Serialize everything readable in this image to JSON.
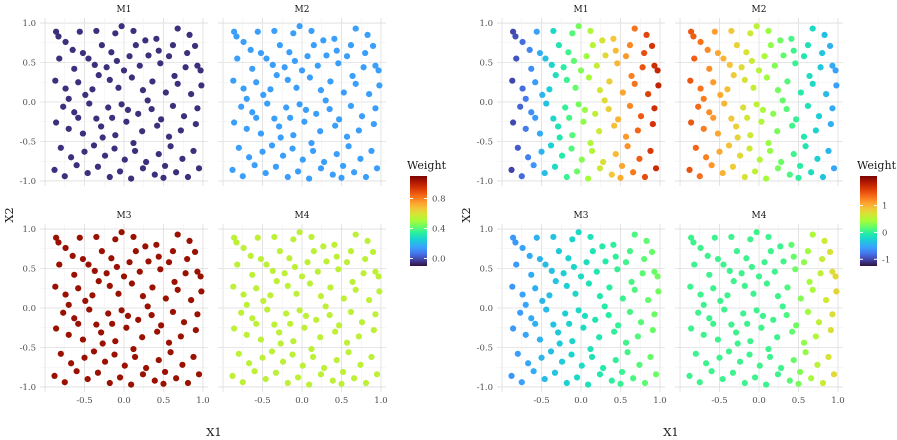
{
  "chart_data": [
    {
      "type": "scatter",
      "facet_layout": "2x2",
      "panels": [
        "M1",
        "M2",
        "M3",
        "M4"
      ],
      "xlabel": "X1",
      "ylabel": "X2",
      "xlim": [
        -1,
        1
      ],
      "ylim": [
        -1,
        1
      ],
      "x_ticks": [
        "-0.5",
        "0.0",
        "0.5",
        "1.0"
      ],
      "y_ticks": [
        "1.0",
        "0.5",
        "0.0",
        "-0.5",
        "-1.0"
      ],
      "legend": {
        "title": "Weight",
        "position": "right",
        "scale": "turbo",
        "range": [
          -0.1,
          1.1
        ],
        "ticks": [
          "0.8",
          "0.4",
          "0.0"
        ]
      },
      "point_weights": {
        "M1": -0.05,
        "M2": 0.15,
        "M3": 1.05,
        "M4": 0.55
      }
    },
    {
      "type": "scatter",
      "facet_layout": "2x2",
      "panels": [
        "M1",
        "M2",
        "M3",
        "M4"
      ],
      "xlabel": "X1",
      "ylabel": "X2",
      "xlim": [
        -1,
        1
      ],
      "ylim": [
        -1,
        1
      ],
      "x_ticks": [
        "-0.5",
        "0.0",
        "0.5",
        "1.0"
      ],
      "y_ticks": [
        "1.0",
        "0.5",
        "0.0",
        "-0.5",
        "-1.0"
      ],
      "legend": {
        "title": "Weight",
        "position": "right",
        "scale": "turbo",
        "range": [
          -1.25,
          2.1
        ],
        "ticks": [
          "1",
          "0",
          "-1"
        ]
      },
      "weight_function": "X1-dependent (M1 low-left/high-right, M2 high-left/low-right, M3 and M4 near 0 with slight gradient)"
    }
  ],
  "points": [
    [
      -0.86,
      0.89
    ],
    [
      -0.83,
      0.83
    ],
    [
      -0.74,
      0.76
    ],
    [
      -0.65,
      0.66
    ],
    [
      -0.56,
      0.89
    ],
    [
      -0.52,
      0.62
    ],
    [
      -0.35,
      0.9
    ],
    [
      -0.28,
      0.72
    ],
    [
      -0.16,
      0.63
    ],
    [
      -0.11,
      0.87
    ],
    [
      -0.03,
      0.96
    ],
    [
      0.12,
      0.9
    ],
    [
      0.27,
      0.78
    ],
    [
      0.41,
      0.8
    ],
    [
      0.57,
      0.58
    ],
    [
      0.68,
      0.93
    ],
    [
      0.83,
      0.85
    ],
    [
      0.9,
      0.71
    ],
    [
      0.93,
      0.46
    ],
    [
      -0.82,
      0.55
    ],
    [
      -0.63,
      0.42
    ],
    [
      -0.45,
      0.55
    ],
    [
      -0.37,
      0.47
    ],
    [
      -0.22,
      0.44
    ],
    [
      -0.09,
      0.52
    ],
    [
      0.07,
      0.58
    ],
    [
      0.2,
      0.46
    ],
    [
      0.31,
      0.59
    ],
    [
      0.46,
      0.49
    ],
    [
      0.64,
      0.33
    ],
    [
      0.78,
      0.44
    ],
    [
      0.97,
      0.4
    ],
    [
      -0.87,
      0.27
    ],
    [
      -0.74,
      0.17
    ],
    [
      -0.58,
      0.25
    ],
    [
      -0.49,
      0.09
    ],
    [
      -0.32,
      0.34
    ],
    [
      -0.18,
      0.28
    ],
    [
      -0.07,
      0.18
    ],
    [
      0.1,
      0.31
    ],
    [
      0.24,
      0.15
    ],
    [
      0.36,
      0.26
    ],
    [
      0.53,
      0.12
    ],
    [
      0.68,
      0.23
    ],
    [
      0.85,
      0.1
    ],
    [
      0.98,
      0.21
    ],
    [
      -0.77,
      -0.06
    ],
    [
      -0.63,
      -0.13
    ],
    [
      -0.44,
      -0.02
    ],
    [
      -0.35,
      -0.21
    ],
    [
      -0.2,
      -0.07
    ],
    [
      -0.03,
      -0.03
    ],
    [
      0.05,
      -0.1
    ],
    [
      0.18,
      -0.15
    ],
    [
      0.35,
      -0.09
    ],
    [
      0.47,
      -0.22
    ],
    [
      0.62,
      -0.05
    ],
    [
      0.76,
      -0.18
    ],
    [
      0.93,
      -0.08
    ],
    [
      -0.86,
      -0.26
    ],
    [
      -0.7,
      -0.34
    ],
    [
      -0.52,
      -0.4
    ],
    [
      -0.29,
      -0.31
    ],
    [
      -0.11,
      -0.42
    ],
    [
      0.03,
      -0.25
    ],
    [
      0.23,
      -0.37
    ],
    [
      0.42,
      -0.3
    ],
    [
      0.57,
      -0.44
    ],
    [
      0.72,
      -0.36
    ],
    [
      0.91,
      -0.28
    ],
    [
      -0.8,
      -0.58
    ],
    [
      -0.67,
      -0.7
    ],
    [
      -0.5,
      -0.63
    ],
    [
      -0.38,
      -0.55
    ],
    [
      -0.24,
      -0.68
    ],
    [
      -0.12,
      -0.59
    ],
    [
      0.01,
      -0.73
    ],
    [
      0.14,
      -0.62
    ],
    [
      0.28,
      -0.76
    ],
    [
      0.44,
      -0.66
    ],
    [
      0.59,
      -0.56
    ],
    [
      0.74,
      -0.72
    ],
    [
      0.88,
      -0.62
    ],
    [
      -0.88,
      -0.86
    ],
    [
      -0.75,
      -0.94
    ],
    [
      -0.6,
      -0.8
    ],
    [
      -0.46,
      -0.9
    ],
    [
      -0.33,
      -0.82
    ],
    [
      -0.18,
      -0.95
    ],
    [
      -0.05,
      -0.88
    ],
    [
      0.09,
      -0.97
    ],
    [
      0.24,
      -0.84
    ],
    [
      0.39,
      -0.92
    ],
    [
      0.52,
      -0.81
    ],
    [
      0.66,
      -0.89
    ],
    [
      0.81,
      -0.95
    ],
    [
      0.95,
      -0.84
    ],
    [
      -0.4,
      0.16
    ],
    [
      0.15,
      0.72
    ],
    [
      0.5,
      -0.96
    ],
    [
      -0.58,
      -0.2
    ],
    [
      0.3,
      0.02
    ],
    [
      0.8,
      0.62
    ],
    [
      -0.15,
      -0.2
    ],
    [
      0.62,
      0.72
    ],
    [
      -0.7,
      0.04
    ],
    [
      0.0,
      0.4
    ],
    [
      0.44,
      0.65
    ],
    [
      -0.27,
      -0.45
    ],
    [
      0.12,
      -0.52
    ]
  ]
}
